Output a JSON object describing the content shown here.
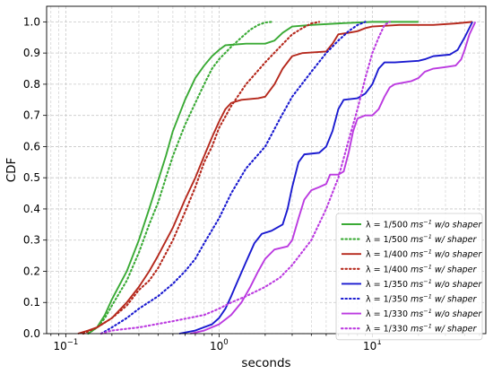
{
  "chart_data": {
    "type": "line",
    "title": "",
    "xlabel": "seconds",
    "ylabel": "CDF",
    "xscale": "log",
    "xlim": [
      0.075,
      55
    ],
    "ylim": [
      0,
      1.05
    ],
    "grid": true,
    "legend_position": "bottom-right",
    "x_tick_labels": [
      {
        "value": 0.1,
        "base": "10",
        "exp": "−1"
      },
      {
        "value": 1,
        "base": "10",
        "exp": "0"
      },
      {
        "value": 10,
        "base": "10",
        "exp": "1"
      }
    ],
    "y_ticks": [
      0.0,
      0.1,
      0.2,
      0.3,
      0.4,
      0.5,
      0.6,
      0.7,
      0.8,
      0.9,
      1.0
    ],
    "y_tick_labels": [
      "0.0",
      "0.1",
      "0.2",
      "0.3",
      "0.4",
      "0.5",
      "0.6",
      "0.7",
      "0.8",
      "0.9",
      "1.0"
    ],
    "series": [
      {
        "name": "λ = 1/500 ms⁻¹ w/o shaper",
        "lambda": "λ = 1/500 ",
        "unit_base": "ms",
        "unit_exp": "−1",
        "suffix": " w/o shaper",
        "color": "#3aaa35",
        "dash": "solid",
        "points": [
          [
            0.14,
            0
          ],
          [
            0.16,
            0.02
          ],
          [
            0.18,
            0.06
          ],
          [
            0.2,
            0.11
          ],
          [
            0.25,
            0.2
          ],
          [
            0.3,
            0.3
          ],
          [
            0.35,
            0.4
          ],
          [
            0.4,
            0.49
          ],
          [
            0.45,
            0.57
          ],
          [
            0.5,
            0.65
          ],
          [
            0.6,
            0.75
          ],
          [
            0.7,
            0.82
          ],
          [
            0.8,
            0.86
          ],
          [
            0.9,
            0.89
          ],
          [
            1.0,
            0.91
          ],
          [
            1.1,
            0.925
          ],
          [
            1.5,
            0.93
          ],
          [
            2.0,
            0.93
          ],
          [
            2.3,
            0.94
          ],
          [
            2.6,
            0.965
          ],
          [
            3.0,
            0.985
          ],
          [
            4.0,
            0.99
          ],
          [
            6.0,
            0.995
          ],
          [
            10,
            1.0
          ],
          [
            20,
            1.0
          ]
        ]
      },
      {
        "name": "λ = 1/500 ms⁻¹ w/ shaper",
        "lambda": "λ = 1/500 ",
        "unit_base": "ms",
        "unit_exp": "−1",
        "suffix": " w/ shaper",
        "color": "#3aaa35",
        "dash": "dotted",
        "points": [
          [
            0.14,
            0
          ],
          [
            0.16,
            0.02
          ],
          [
            0.18,
            0.05
          ],
          [
            0.2,
            0.09
          ],
          [
            0.25,
            0.17
          ],
          [
            0.3,
            0.26
          ],
          [
            0.35,
            0.35
          ],
          [
            0.4,
            0.42
          ],
          [
            0.45,
            0.5
          ],
          [
            0.5,
            0.57
          ],
          [
            0.6,
            0.67
          ],
          [
            0.7,
            0.74
          ],
          [
            0.8,
            0.8
          ],
          [
            0.9,
            0.85
          ],
          [
            1.0,
            0.88
          ],
          [
            1.2,
            0.92
          ],
          [
            1.4,
            0.95
          ],
          [
            1.6,
            0.975
          ],
          [
            1.8,
            0.99
          ],
          [
            2.0,
            0.998
          ],
          [
            2.2,
            1.0
          ]
        ]
      },
      {
        "name": "λ = 1/400 ms⁻¹ w/o shaper",
        "lambda": "λ = 1/400 ",
        "unit_base": "ms",
        "unit_exp": "−1",
        "suffix": " w/o shaper",
        "color": "#b5281c",
        "dash": "solid",
        "points": [
          [
            0.12,
            0
          ],
          [
            0.14,
            0.01
          ],
          [
            0.16,
            0.02
          ],
          [
            0.2,
            0.05
          ],
          [
            0.25,
            0.1
          ],
          [
            0.3,
            0.15
          ],
          [
            0.35,
            0.2
          ],
          [
            0.4,
            0.25
          ],
          [
            0.5,
            0.34
          ],
          [
            0.6,
            0.43
          ],
          [
            0.7,
            0.5
          ],
          [
            0.8,
            0.57
          ],
          [
            0.9,
            0.63
          ],
          [
            1.0,
            0.68
          ],
          [
            1.1,
            0.72
          ],
          [
            1.2,
            0.74
          ],
          [
            1.4,
            0.75
          ],
          [
            1.8,
            0.755
          ],
          [
            2.0,
            0.76
          ],
          [
            2.3,
            0.8
          ],
          [
            2.6,
            0.85
          ],
          [
            3.0,
            0.89
          ],
          [
            3.5,
            0.9
          ],
          [
            5.0,
            0.905
          ],
          [
            5.5,
            0.93
          ],
          [
            6.0,
            0.96
          ],
          [
            7.0,
            0.965
          ],
          [
            8.0,
            0.97
          ],
          [
            9.0,
            0.98
          ],
          [
            10.0,
            0.985
          ],
          [
            15.0,
            0.99
          ],
          [
            25.0,
            0.99
          ],
          [
            35.0,
            0.995
          ],
          [
            45.0,
            1.0
          ]
        ]
      },
      {
        "name": "λ = 1/400 ms⁻¹ w/ shaper",
        "lambda": "λ = 1/400 ",
        "unit_base": "ms",
        "unit_exp": "−1",
        "suffix": " w/ shaper",
        "color": "#b5281c",
        "dash": "dotted",
        "points": [
          [
            0.13,
            0
          ],
          [
            0.16,
            0.02
          ],
          [
            0.2,
            0.05
          ],
          [
            0.25,
            0.09
          ],
          [
            0.3,
            0.14
          ],
          [
            0.35,
            0.17
          ],
          [
            0.4,
            0.21
          ],
          [
            0.5,
            0.3
          ],
          [
            0.6,
            0.39
          ],
          [
            0.7,
            0.47
          ],
          [
            0.8,
            0.55
          ],
          [
            0.9,
            0.6
          ],
          [
            1.0,
            0.66
          ],
          [
            1.2,
            0.73
          ],
          [
            1.5,
            0.8
          ],
          [
            2.0,
            0.87
          ],
          [
            2.5,
            0.92
          ],
          [
            3.0,
            0.96
          ],
          [
            3.5,
            0.98
          ],
          [
            4.0,
            0.995
          ],
          [
            4.5,
            1.0
          ]
        ]
      },
      {
        "name": "λ = 1/350 ms⁻¹ w/o shaper",
        "lambda": "λ = 1/350 ",
        "unit_base": "ms",
        "unit_exp": "−1",
        "suffix": " w/o shaper",
        "color": "#1a1ad0",
        "dash": "solid",
        "points": [
          [
            0.55,
            0
          ],
          [
            0.7,
            0.01
          ],
          [
            0.9,
            0.03
          ],
          [
            1.0,
            0.05
          ],
          [
            1.1,
            0.08
          ],
          [
            1.2,
            0.12
          ],
          [
            1.3,
            0.16
          ],
          [
            1.5,
            0.23
          ],
          [
            1.7,
            0.29
          ],
          [
            1.9,
            0.32
          ],
          [
            2.2,
            0.33
          ],
          [
            2.6,
            0.35
          ],
          [
            2.8,
            0.4
          ],
          [
            3.0,
            0.47
          ],
          [
            3.3,
            0.55
          ],
          [
            3.6,
            0.575
          ],
          [
            4.5,
            0.58
          ],
          [
            5.0,
            0.6
          ],
          [
            5.5,
            0.65
          ],
          [
            6.0,
            0.72
          ],
          [
            6.5,
            0.75
          ],
          [
            8.0,
            0.755
          ],
          [
            9.0,
            0.77
          ],
          [
            10.0,
            0.8
          ],
          [
            11.0,
            0.85
          ],
          [
            12.0,
            0.87
          ],
          [
            14.0,
            0.87
          ],
          [
            20.0,
            0.875
          ],
          [
            22.0,
            0.88
          ],
          [
            25.0,
            0.89
          ],
          [
            32.0,
            0.895
          ],
          [
            36.0,
            0.91
          ],
          [
            40.0,
            0.95
          ],
          [
            45.0,
            1.0
          ]
        ]
      },
      {
        "name": "λ = 1/350 ms⁻¹ w/ shaper",
        "lambda": "λ = 1/350 ",
        "unit_base": "ms",
        "unit_exp": "−1",
        "suffix": " w/ shaper",
        "color": "#1a1ad0",
        "dash": "dotted",
        "points": [
          [
            0.17,
            0
          ],
          [
            0.2,
            0.02
          ],
          [
            0.25,
            0.05
          ],
          [
            0.3,
            0.08
          ],
          [
            0.4,
            0.12
          ],
          [
            0.5,
            0.16
          ],
          [
            0.6,
            0.2
          ],
          [
            0.7,
            0.24
          ],
          [
            0.8,
            0.29
          ],
          [
            1.0,
            0.37
          ],
          [
            1.2,
            0.45
          ],
          [
            1.5,
            0.53
          ],
          [
            2.0,
            0.6
          ],
          [
            2.5,
            0.69
          ],
          [
            3.0,
            0.76
          ],
          [
            4.0,
            0.84
          ],
          [
            5.0,
            0.9
          ],
          [
            6.0,
            0.94
          ],
          [
            7.0,
            0.97
          ],
          [
            8.0,
            0.99
          ],
          [
            9.0,
            1.0
          ]
        ]
      },
      {
        "name": "λ = 1/330 ms⁻¹ w/o shaper",
        "lambda": "λ = 1/330 ",
        "unit_base": "ms",
        "unit_exp": "−1",
        "suffix": " w/o shaper",
        "color": "#bb3ae0",
        "dash": "solid",
        "points": [
          [
            0.65,
            0
          ],
          [
            0.8,
            0.01
          ],
          [
            1.0,
            0.03
          ],
          [
            1.2,
            0.06
          ],
          [
            1.4,
            0.1
          ],
          [
            1.6,
            0.15
          ],
          [
            1.8,
            0.2
          ],
          [
            2.0,
            0.24
          ],
          [
            2.3,
            0.27
          ],
          [
            2.8,
            0.28
          ],
          [
            3.0,
            0.3
          ],
          [
            3.3,
            0.37
          ],
          [
            3.6,
            0.43
          ],
          [
            4.0,
            0.46
          ],
          [
            4.5,
            0.47
          ],
          [
            5.0,
            0.48
          ],
          [
            5.3,
            0.51
          ],
          [
            6.0,
            0.51
          ],
          [
            6.5,
            0.52
          ],
          [
            7.0,
            0.58
          ],
          [
            7.5,
            0.65
          ],
          [
            8.0,
            0.69
          ],
          [
            9.0,
            0.7
          ],
          [
            10.0,
            0.7
          ],
          [
            11.0,
            0.72
          ],
          [
            12.0,
            0.76
          ],
          [
            13.0,
            0.79
          ],
          [
            14.0,
            0.8
          ],
          [
            18.0,
            0.81
          ],
          [
            20.0,
            0.82
          ],
          [
            22.0,
            0.84
          ],
          [
            25.0,
            0.85
          ],
          [
            30.0,
            0.855
          ],
          [
            35.0,
            0.86
          ],
          [
            38.0,
            0.88
          ],
          [
            40.0,
            0.91
          ],
          [
            43.0,
            0.96
          ],
          [
            47.0,
            1.0
          ]
        ]
      },
      {
        "name": "λ = 1/330 ms⁻¹ w/ shaper",
        "lambda": "λ = 1/330 ",
        "unit_base": "ms",
        "unit_exp": "−1",
        "suffix": " w/ shaper",
        "color": "#bb3ae0",
        "dash": "dotted",
        "points": [
          [
            0.17,
            0
          ],
          [
            0.2,
            0.01
          ],
          [
            0.3,
            0.02
          ],
          [
            0.5,
            0.04
          ],
          [
            0.8,
            0.06
          ],
          [
            1.0,
            0.08
          ],
          [
            1.2,
            0.1
          ],
          [
            1.5,
            0.12
          ],
          [
            2.0,
            0.15
          ],
          [
            2.5,
            0.18
          ],
          [
            3.0,
            0.22
          ],
          [
            4.0,
            0.3
          ],
          [
            5.0,
            0.4
          ],
          [
            6.0,
            0.5
          ],
          [
            7.0,
            0.62
          ],
          [
            8.0,
            0.72
          ],
          [
            9.0,
            0.82
          ],
          [
            10.0,
            0.9
          ],
          [
            11.0,
            0.95
          ],
          [
            12.0,
            0.99
          ],
          [
            13.0,
            1.0
          ]
        ]
      }
    ]
  }
}
